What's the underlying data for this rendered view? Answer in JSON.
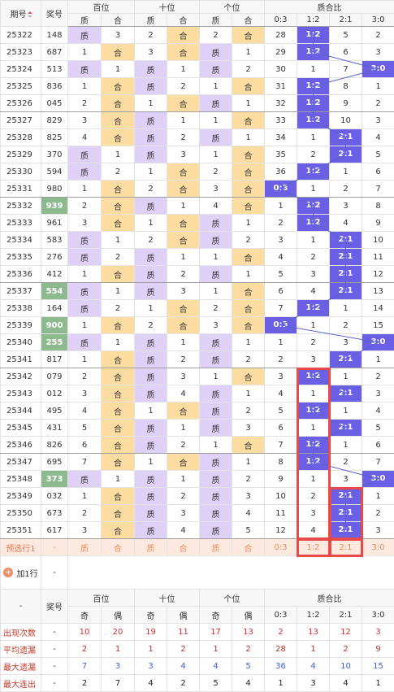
{
  "header": {
    "issue_label": "期号",
    "number_label": "奖号",
    "groups": [
      "百位",
      "十位",
      "个位",
      "质合比"
    ],
    "subs": [
      "质",
      "合",
      "质",
      "合",
      "质",
      "合",
      "质",
      "合"
    ],
    "ratios": [
      "0:3",
      "1:2",
      "2:1",
      "3:0"
    ]
  },
  "rows": [
    {
      "issue": "25322",
      "num": "148",
      "b": [
        "质",
        "3"
      ],
      "s": [
        "2",
        "合"
      ],
      "g": [
        "2",
        "合"
      ],
      "r": [
        "28",
        "1:2",
        "5",
        "2"
      ],
      "ball": 1,
      "green": false
    },
    {
      "issue": "25323",
      "num": "687",
      "b": [
        "1",
        "合"
      ],
      "s": [
        "3",
        "合"
      ],
      "g": [
        "质",
        "1"
      ],
      "r": [
        "29",
        "1:2",
        "6",
        "3"
      ],
      "ball": 1,
      "green": false
    },
    {
      "issue": "25324",
      "num": "513",
      "b": [
        "质",
        "1"
      ],
      "s": [
        "质",
        "1"
      ],
      "g": [
        "质",
        "2"
      ],
      "r": [
        "30",
        "1",
        "7",
        "3:0"
      ],
      "ball": 3,
      "green": false
    },
    {
      "issue": "25325",
      "num": "836",
      "b": [
        "1",
        "合"
      ],
      "s": [
        "质",
        "2"
      ],
      "g": [
        "1",
        "合"
      ],
      "r": [
        "31",
        "1:2",
        "8",
        "1"
      ],
      "ball": 1,
      "green": false
    },
    {
      "issue": "25326",
      "num": "045",
      "b": [
        "2",
        "合"
      ],
      "s": [
        "1",
        "合"
      ],
      "g": [
        "质",
        "1"
      ],
      "r": [
        "32",
        "1:2",
        "9",
        "2"
      ],
      "ball": 1,
      "green": false
    },
    {
      "issue": "25327",
      "num": "829",
      "b": [
        "3",
        "合"
      ],
      "s": [
        "质",
        "1"
      ],
      "g": [
        "1",
        "合"
      ],
      "r": [
        "33",
        "1:2",
        "10",
        "3"
      ],
      "ball": 1,
      "green": false
    },
    {
      "issue": "25328",
      "num": "825",
      "b": [
        "4",
        "合"
      ],
      "s": [
        "质",
        "2"
      ],
      "g": [
        "质",
        "1"
      ],
      "r": [
        "34",
        "1",
        "2:1",
        "4"
      ],
      "ball": 2,
      "green": false
    },
    {
      "issue": "25329",
      "num": "370",
      "b": [
        "质",
        "1"
      ],
      "s": [
        "质",
        "3"
      ],
      "g": [
        "1",
        "合"
      ],
      "r": [
        "35",
        "2",
        "2:1",
        "5"
      ],
      "ball": 2,
      "green": false
    },
    {
      "issue": "25330",
      "num": "594",
      "b": [
        "质",
        "2"
      ],
      "s": [
        "1",
        "合"
      ],
      "g": [
        "2",
        "合"
      ],
      "r": [
        "36",
        "1:2",
        "1",
        "6"
      ],
      "ball": 1,
      "green": false
    },
    {
      "issue": "25331",
      "num": "980",
      "b": [
        "1",
        "合"
      ],
      "s": [
        "2",
        "合"
      ],
      "g": [
        "3",
        "合"
      ],
      "r": [
        "0:3",
        "1",
        "2",
        "7"
      ],
      "ball": 0,
      "green": false
    },
    {
      "issue": "25332",
      "num": "939",
      "b": [
        "2",
        "合"
      ],
      "s": [
        "质",
        "1"
      ],
      "g": [
        "4",
        "合"
      ],
      "r": [
        "1",
        "1:2",
        "3",
        "8"
      ],
      "ball": 1,
      "green": true
    },
    {
      "issue": "25333",
      "num": "961",
      "b": [
        "3",
        "合"
      ],
      "s": [
        "1",
        "合"
      ],
      "g": [
        "质",
        "1"
      ],
      "r": [
        "2",
        "1:2",
        "4",
        "9"
      ],
      "ball": 1,
      "green": false
    },
    {
      "issue": "25334",
      "num": "583",
      "b": [
        "质",
        "1"
      ],
      "s": [
        "2",
        "合"
      ],
      "g": [
        "质",
        "2"
      ],
      "r": [
        "3",
        "1",
        "2:1",
        "10"
      ],
      "ball": 2,
      "green": false
    },
    {
      "issue": "25335",
      "num": "276",
      "b": [
        "质",
        "2"
      ],
      "s": [
        "质",
        "1"
      ],
      "g": [
        "1",
        "合"
      ],
      "r": [
        "4",
        "2",
        "2:1",
        "11"
      ],
      "ball": 2,
      "green": false
    },
    {
      "issue": "25336",
      "num": "412",
      "b": [
        "1",
        "合"
      ],
      "s": [
        "质",
        "2"
      ],
      "g": [
        "质",
        "1"
      ],
      "r": [
        "5",
        "3",
        "2:1",
        "12"
      ],
      "ball": 2,
      "green": false
    },
    {
      "issue": "25337",
      "num": "554",
      "b": [
        "质",
        "1"
      ],
      "s": [
        "质",
        "3"
      ],
      "g": [
        "1",
        "合"
      ],
      "r": [
        "6",
        "4",
        "2:1",
        "13"
      ],
      "ball": 2,
      "green": true
    },
    {
      "issue": "25338",
      "num": "164",
      "b": [
        "质",
        "2"
      ],
      "s": [
        "1",
        "合"
      ],
      "g": [
        "2",
        "合"
      ],
      "r": [
        "7",
        "1:2",
        "1",
        "14"
      ],
      "ball": 1,
      "green": false
    },
    {
      "issue": "25339",
      "num": "900",
      "b": [
        "1",
        "合"
      ],
      "s": [
        "2",
        "合"
      ],
      "g": [
        "3",
        "合"
      ],
      "r": [
        "0:3",
        "1",
        "2",
        "15"
      ],
      "ball": 0,
      "green": true
    },
    {
      "issue": "25340",
      "num": "255",
      "b": [
        "质",
        "1"
      ],
      "s": [
        "质",
        "1"
      ],
      "g": [
        "质",
        "1"
      ],
      "r": [
        "1",
        "2",
        "3",
        "3:0"
      ],
      "ball": 3,
      "green": true
    },
    {
      "issue": "25341",
      "num": "817",
      "b": [
        "1",
        "合"
      ],
      "s": [
        "质",
        "2"
      ],
      "g": [
        "质",
        "2"
      ],
      "r": [
        "2",
        "3",
        "2:1",
        "1"
      ],
      "ball": 2,
      "green": false
    },
    {
      "issue": "25342",
      "num": "079",
      "b": [
        "2",
        "合"
      ],
      "s": [
        "质",
        "3"
      ],
      "g": [
        "1",
        "合"
      ],
      "r": [
        "3",
        "1:2",
        "1",
        "2"
      ],
      "ball": 1,
      "green": false
    },
    {
      "issue": "25343",
      "num": "012",
      "b": [
        "3",
        "合"
      ],
      "s": [
        "质",
        "4"
      ],
      "g": [
        "质",
        "1"
      ],
      "r": [
        "4",
        "1",
        "2:1",
        "3"
      ],
      "ball": 2,
      "green": false
    },
    {
      "issue": "25344",
      "num": "495",
      "b": [
        "4",
        "合"
      ],
      "s": [
        "1",
        "合"
      ],
      "g": [
        "质",
        "2"
      ],
      "r": [
        "5",
        "1:2",
        "1",
        "4"
      ],
      "ball": 1,
      "green": false
    },
    {
      "issue": "25345",
      "num": "431",
      "b": [
        "5",
        "合"
      ],
      "s": [
        "质",
        "1"
      ],
      "g": [
        "质",
        "3"
      ],
      "r": [
        "6",
        "1",
        "2:1",
        "5"
      ],
      "ball": 2,
      "green": false
    },
    {
      "issue": "25346",
      "num": "826",
      "b": [
        "6",
        "合"
      ],
      "s": [
        "质",
        "2"
      ],
      "g": [
        "1",
        "合"
      ],
      "r": [
        "7",
        "1:2",
        "1",
        "6"
      ],
      "ball": 1,
      "green": false
    },
    {
      "issue": "25347",
      "num": "695",
      "b": [
        "7",
        "合"
      ],
      "s": [
        "1",
        "合"
      ],
      "g": [
        "质",
        "1"
      ],
      "r": [
        "8",
        "1:2",
        "2",
        "7"
      ],
      "ball": 1,
      "green": false
    },
    {
      "issue": "25348",
      "num": "373",
      "b": [
        "质",
        "1"
      ],
      "s": [
        "质",
        "1"
      ],
      "g": [
        "质",
        "2"
      ],
      "r": [
        "9",
        "1",
        "3",
        "3:0"
      ],
      "ball": 3,
      "green": true
    },
    {
      "issue": "25349",
      "num": "032",
      "b": [
        "1",
        "合"
      ],
      "s": [
        "质",
        "2"
      ],
      "g": [
        "质",
        "3"
      ],
      "r": [
        "10",
        "2",
        "2:1",
        "1"
      ],
      "ball": 2,
      "green": false
    },
    {
      "issue": "25350",
      "num": "673",
      "b": [
        "2",
        "合"
      ],
      "s": [
        "质",
        "3"
      ],
      "g": [
        "质",
        "4"
      ],
      "r": [
        "11",
        "3",
        "2:1",
        "2"
      ],
      "ball": 2,
      "green": false
    },
    {
      "issue": "25351",
      "num": "617",
      "b": [
        "3",
        "合"
      ],
      "s": [
        "质",
        "4"
      ],
      "g": [
        "质",
        "5"
      ],
      "r": [
        "12",
        "4",
        "2:1",
        "3"
      ],
      "ball": 2,
      "green": false
    }
  ],
  "predict": {
    "label": "预选行1",
    "num": "-",
    "cells": [
      "质",
      "合",
      "质",
      "合",
      "质",
      "合"
    ],
    "ratios": [
      "0:3",
      "1:2",
      "2:1",
      "3:0"
    ]
  },
  "add_row": {
    "label": "加1行",
    "num": "-"
  },
  "bottom_header": {
    "dash": "-",
    "number_label": "奖号",
    "groups": [
      "百位",
      "十位",
      "个位",
      "质合比"
    ],
    "subs": [
      "奇",
      "偶",
      "奇",
      "偶",
      "奇",
      "偶"
    ],
    "ratios": [
      "0:3",
      "1:2",
      "2:1",
      "3:0"
    ]
  },
  "stats": [
    {
      "label": "出现次数",
      "num": "-",
      "vals": [
        "10",
        "20",
        "19",
        "11",
        "17",
        "13",
        "2",
        "13",
        "12",
        "3"
      ],
      "color": "#d8302f"
    },
    {
      "label": "平均遗漏",
      "num": "-",
      "vals": [
        "2",
        "1",
        "1",
        "2",
        "1",
        "2",
        "28",
        "1",
        "2",
        "9"
      ],
      "color": "#b1322b"
    },
    {
      "label": "最大遗漏",
      "num": "-",
      "vals": [
        "7",
        "3",
        "3",
        "4",
        "4",
        "5",
        "36",
        "4",
        "10",
        "15"
      ],
      "color": "#3c63d6"
    },
    {
      "label": "最大连出",
      "num": "-",
      "vals": [
        "2",
        "7",
        "4",
        "2",
        "5",
        "4",
        "1",
        "3",
        "4",
        "1"
      ],
      "color": "#222"
    }
  ]
}
